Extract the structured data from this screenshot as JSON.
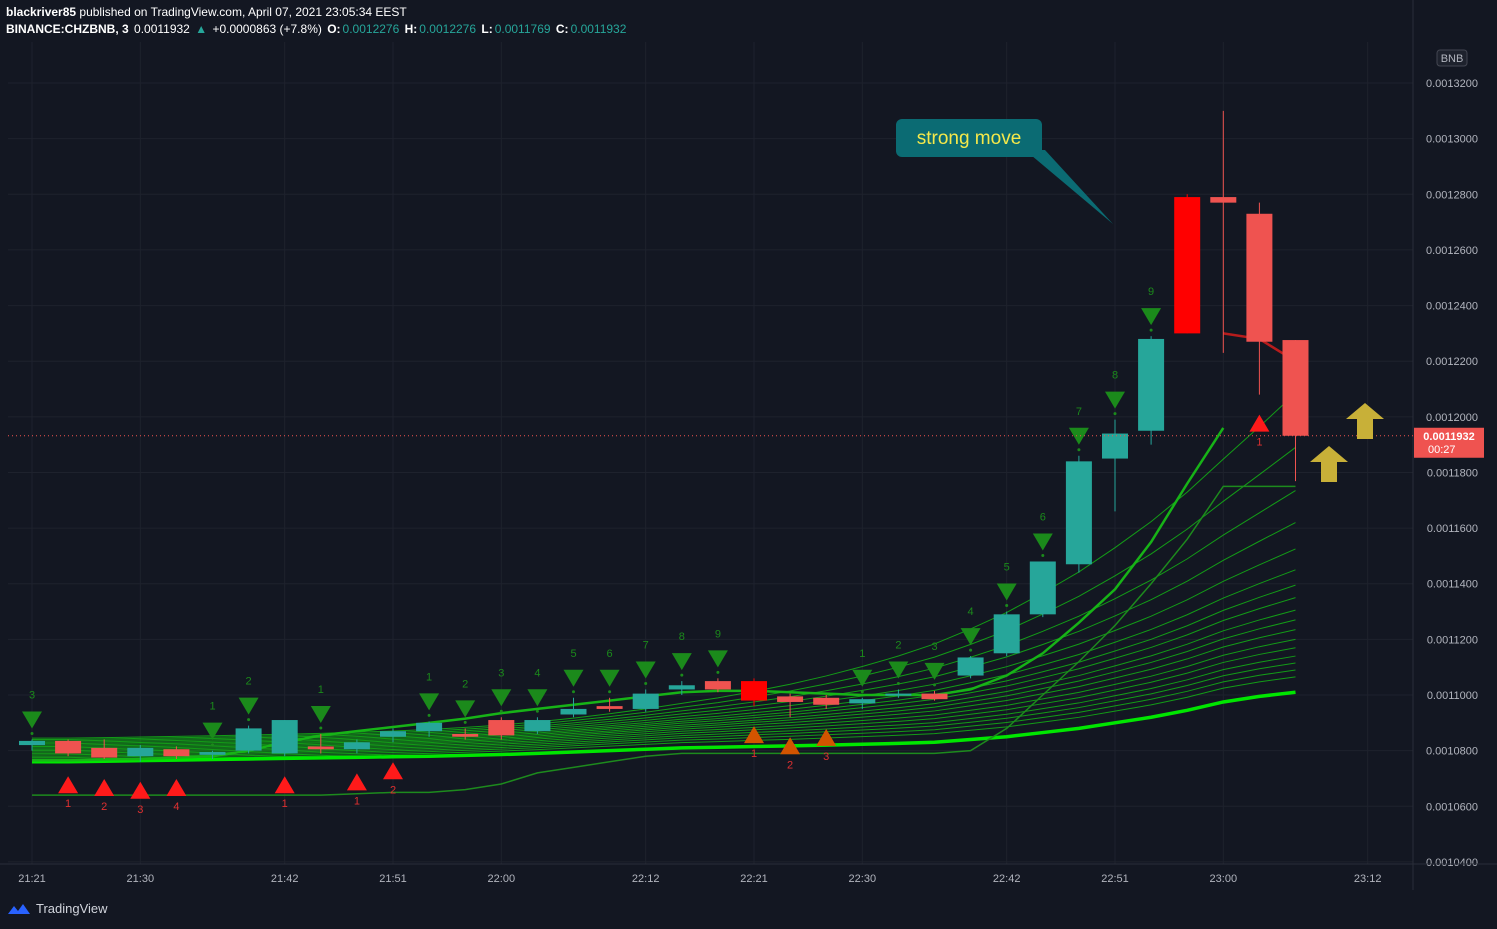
{
  "header": {
    "publisher": "blackriver85",
    "published_text": "published on TradingView.com, April 07, 2021 23:05:34 EEST",
    "symbol": "BINANCE:CHZBNB, 3",
    "last": "0.0011932",
    "change": "+0.0000863 (+7.8%)",
    "o_label": "O:",
    "o_value": "0.0012276",
    "h_label": "H:",
    "h_value": "0.0012276",
    "l_label": "L:",
    "l_value": "0.0011769",
    "c_label": "C:",
    "c_value": "0.0011932"
  },
  "footer": {
    "brand": "TradingView"
  },
  "colors": {
    "up": "#26a69a",
    "down": "#ef5350",
    "strong_down": "#ff0000",
    "ma": "#00e600",
    "bg": "#131722",
    "annotation_bg": "#0b6b73",
    "annotation_text": "#f5e84a",
    "arrow": "#c8b038"
  },
  "chart_data": {
    "type": "candlestick",
    "currency_badge": "BNB",
    "y_ticks": [
      "0.0013200",
      "0.0013000",
      "0.0012800",
      "0.0012600",
      "0.0012400",
      "0.0012200",
      "0.0012000",
      "0.0011800",
      "0.0011600",
      "0.0011400",
      "0.0011200",
      "0.0011000",
      "0.0010800",
      "0.0010600",
      "0.0010400"
    ],
    "ylim": [
      0.00103925,
      0.00133475
    ],
    "x_ticks": [
      {
        "label": "21:21",
        "i": 0
      },
      {
        "label": "21:30",
        "i": 3
      },
      {
        "label": "21:42",
        "i": 7
      },
      {
        "label": "21:51",
        "i": 10
      },
      {
        "label": "22:00",
        "i": 13
      },
      {
        "label": "22:12",
        "i": 17
      },
      {
        "label": "22:21",
        "i": 20
      },
      {
        "label": "22:30",
        "i": 23
      },
      {
        "label": "22:42",
        "i": 27
      },
      {
        "label": "22:51",
        "i": 30
      },
      {
        "label": "23:00",
        "i": 33
      },
      {
        "label": "23:12",
        "i": 37
      }
    ],
    "last_price_label": "0.0011932",
    "countdown_label": "00:27",
    "candles": [
      {
        "o": 0.001082,
        "h": 0.001084,
        "l": 0.00108,
        "c": 0.0010835
      },
      {
        "o": 0.0010835,
        "h": 0.001084,
        "l": 0.001078,
        "c": 0.001079
      },
      {
        "o": 0.001081,
        "h": 0.001084,
        "l": 0.001077,
        "c": 0.0010775
      },
      {
        "o": 0.001078,
        "h": 0.001082,
        "l": 0.001076,
        "c": 0.001081
      },
      {
        "o": 0.0010805,
        "h": 0.0010815,
        "l": 0.001077,
        "c": 0.001078
      },
      {
        "o": 0.0010785,
        "h": 0.00108,
        "l": 0.001077,
        "c": 0.0010795
      },
      {
        "o": 0.00108,
        "h": 0.001089,
        "l": 0.001079,
        "c": 0.001088
      },
      {
        "o": 0.001079,
        "h": 0.001091,
        "l": 0.001078,
        "c": 0.001091
      },
      {
        "o": 0.0010815,
        "h": 0.001086,
        "l": 0.001079,
        "c": 0.0010805
      },
      {
        "o": 0.0010805,
        "h": 0.001084,
        "l": 0.001079,
        "c": 0.001083
      },
      {
        "o": 0.001085,
        "h": 0.001088,
        "l": 0.001083,
        "c": 0.001087
      },
      {
        "o": 0.001087,
        "h": 0.0010905,
        "l": 0.001085,
        "c": 0.00109
      },
      {
        "o": 0.001086,
        "h": 0.001088,
        "l": 0.001084,
        "c": 0.001085
      },
      {
        "o": 0.001091,
        "h": 0.001092,
        "l": 0.001084,
        "c": 0.0010855
      },
      {
        "o": 0.001087,
        "h": 0.001092,
        "l": 0.001086,
        "c": 0.001091
      },
      {
        "o": 0.001093,
        "h": 0.001099,
        "l": 0.001092,
        "c": 0.001095
      },
      {
        "o": 0.001096,
        "h": 0.001099,
        "l": 0.001094,
        "c": 0.001095
      },
      {
        "o": 0.001095,
        "h": 0.001102,
        "l": 0.001094,
        "c": 0.0011005
      },
      {
        "o": 0.001102,
        "h": 0.001105,
        "l": 0.0011,
        "c": 0.0011035
      },
      {
        "o": 0.001105,
        "h": 0.001106,
        "l": 0.001101,
        "c": 0.001102
      },
      {
        "o": 0.001105,
        "h": 0.001106,
        "l": 0.001096,
        "c": 0.001098
      },
      {
        "o": 0.0010995,
        "h": 0.0011005,
        "l": 0.001092,
        "c": 0.0010975
      },
      {
        "o": 0.001099,
        "h": 0.0011,
        "l": 0.001095,
        "c": 0.0010965
      },
      {
        "o": 0.001097,
        "h": 0.001099,
        "l": 0.001095,
        "c": 0.0010985
      },
      {
        "o": 0.0011,
        "h": 0.001102,
        "l": 0.001099,
        "c": 0.0011005
      },
      {
        "o": 0.0011005,
        "h": 0.0011015,
        "l": 0.001098,
        "c": 0.0010985
      },
      {
        "o": 0.001107,
        "h": 0.001114,
        "l": 0.001106,
        "c": 0.0011135
      },
      {
        "o": 0.001115,
        "h": 0.00113,
        "l": 0.001114,
        "c": 0.001129
      },
      {
        "o": 0.001129,
        "h": 0.001148,
        "l": 0.001128,
        "c": 0.001148
      },
      {
        "o": 0.001147,
        "h": 0.001186,
        "l": 0.001144,
        "c": 0.001184
      },
      {
        "o": 0.001185,
        "h": 0.001199,
        "l": 0.001166,
        "c": 0.001194
      },
      {
        "o": 0.001195,
        "h": 0.001229,
        "l": 0.00119,
        "c": 0.001228
      },
      {
        "o": 0.001279,
        "h": 0.00128,
        "l": 0.00123,
        "c": 0.00123
      },
      {
        "o": 0.001279,
        "h": 0.00131,
        "l": 0.001223,
        "c": 0.001277
      },
      {
        "o": 0.001273,
        "h": 0.001277,
        "l": 0.001208,
        "c": 0.001227
      },
      {
        "o": 0.0012276,
        "h": 0.0012276,
        "l": 0.0011769,
        "c": 0.0011932
      }
    ],
    "ma_main": [
      0.0010765,
      0.0010765,
      0.0010768,
      0.001077,
      0.0010775,
      0.001078,
      0.00108,
      0.001083,
      0.0010855,
      0.001087,
      0.0010885,
      0.00109,
      0.0010915,
      0.0010935,
      0.001095,
      0.0010965,
      0.001098,
      0.0010995,
      0.001101,
      0.0011015,
      0.0011015,
      0.001101,
      0.0011005,
      0.0011,
      0.0011,
      0.0011,
      0.001102,
      0.001107,
      0.001115,
      0.001126,
      0.001138,
      0.001155,
      0.001176,
      0.001196,
      null,
      null
    ],
    "ma_red": [
      null,
      null,
      null,
      null,
      null,
      null,
      null,
      null,
      null,
      null,
      null,
      null,
      null,
      null,
      null,
      null,
      null,
      null,
      null,
      null,
      null,
      null,
      null,
      null,
      null,
      null,
      null,
      null,
      null,
      null,
      null,
      null,
      null,
      0.00123,
      0.001228,
      0.00122
    ],
    "ma_slow": [
      0.001076,
      0.001076,
      0.0010762,
      0.0010764,
      0.0010766,
      0.0010768,
      0.001077,
      0.0010772,
      0.0010774,
      0.0010776,
      0.0010778,
      0.001078,
      0.0010783,
      0.0010786,
      0.001079,
      0.0010795,
      0.00108,
      0.0010805,
      0.001081,
      0.0010812,
      0.0010815,
      0.0010817,
      0.001082,
      0.0010823,
      0.0010826,
      0.001083,
      0.001084,
      0.001085,
      0.0010865,
      0.001088,
      0.00109,
      0.001092,
      0.0010945,
      0.0010975,
      0.0010995,
      0.001101
    ],
    "ma_low_band": [
      0.001064,
      0.001064,
      0.001064,
      0.001064,
      0.001064,
      0.001064,
      0.001064,
      0.001064,
      0.001064,
      0.0010645,
      0.001065,
      0.001065,
      0.001066,
      0.001068,
      0.001072,
      0.001074,
      0.001076,
      0.001078,
      0.001079,
      0.001079,
      0.001079,
      0.001079,
      0.001079,
      0.001079,
      0.001079,
      0.001079,
      0.00108,
      0.001088,
      0.0011,
      0.001112,
      0.001125,
      0.00114,
      0.001156,
      0.001175,
      0.001175,
      0.001175
    ],
    "ma_end_values": [
      0.0012,
      0.001181,
      0.001166,
      0.001155,
      0.001146,
      0.001139,
      0.001134,
      0.00113,
      0.001126,
      0.001123,
      0.00112,
      0.001117,
      0.0011145,
      0.001112,
      0.00111,
      0.001108,
      0.001106
    ],
    "sell_signals": [
      {
        "i": 0,
        "n": "3"
      },
      {
        "i": 5,
        "n": "1"
      },
      {
        "i": 6,
        "n": "2"
      },
      {
        "i": 8,
        "n": "1"
      },
      {
        "i": 11,
        "n": "1"
      },
      {
        "i": 12,
        "n": "2"
      },
      {
        "i": 13,
        "n": "3"
      },
      {
        "i": 14,
        "n": "4"
      },
      {
        "i": 15,
        "n": "5"
      },
      {
        "i": 16,
        "n": "6"
      },
      {
        "i": 17,
        "n": "7"
      },
      {
        "i": 18,
        "n": "8"
      },
      {
        "i": 19,
        "n": "9"
      },
      {
        "i": 23,
        "n": "1"
      },
      {
        "i": 24,
        "n": "2"
      },
      {
        "i": 25,
        "n": "3"
      },
      {
        "i": 26,
        "n": "4"
      },
      {
        "i": 27,
        "n": "5"
      },
      {
        "i": 28,
        "n": "6"
      },
      {
        "i": 29,
        "n": "7"
      },
      {
        "i": 30,
        "n": "8"
      },
      {
        "i": 31,
        "n": "9"
      }
    ],
    "buy_signals": [
      {
        "i": 1,
        "n": "1"
      },
      {
        "i": 2,
        "n": "2"
      },
      {
        "i": 3,
        "n": "3"
      },
      {
        "i": 4,
        "n": "4"
      },
      {
        "i": 7,
        "n": "1"
      },
      {
        "i": 9,
        "n": "1"
      },
      {
        "i": 10,
        "n": "2"
      },
      {
        "i": 20,
        "n": "1"
      },
      {
        "i": 21,
        "n": "2"
      },
      {
        "i": 22,
        "n": "3"
      },
      {
        "i": 34,
        "n": "1"
      }
    ],
    "annotation": {
      "text": "strong move"
    }
  }
}
